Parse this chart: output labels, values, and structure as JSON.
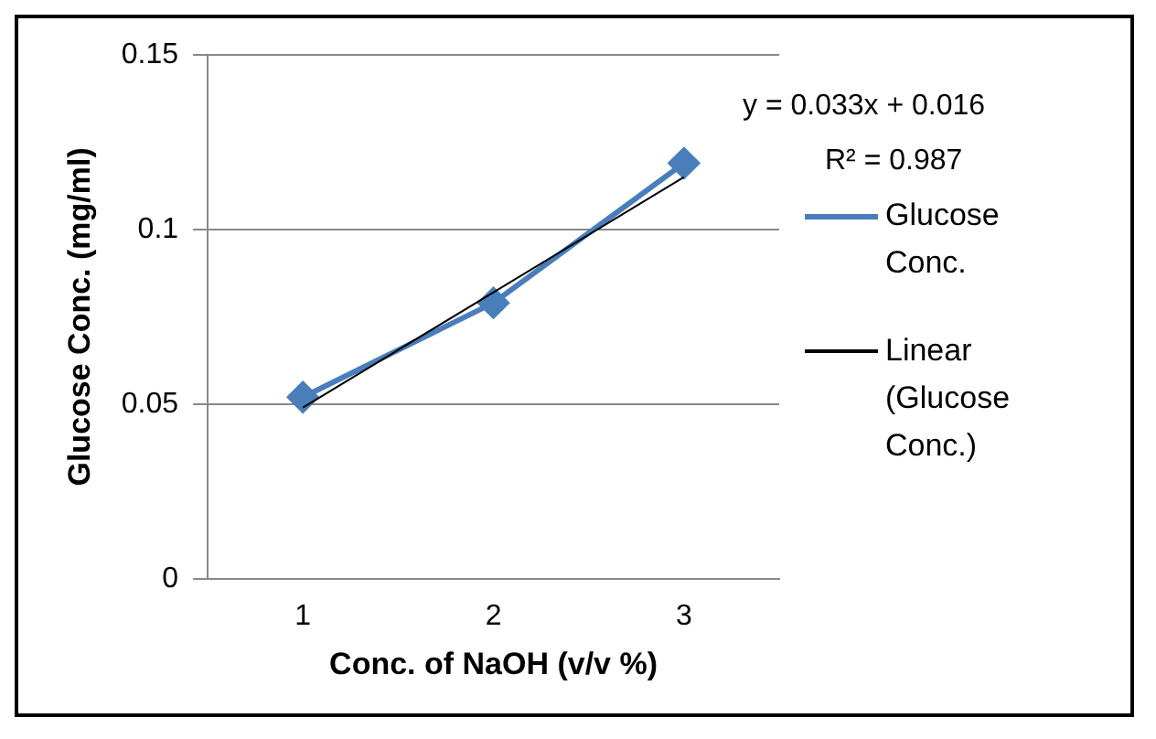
{
  "chart_data": {
    "type": "line",
    "xlabel": "Conc. of NaOH (v/v %)",
    "ylabel": "Glucose Conc. (mg/ml)",
    "x": [
      1,
      2,
      3
    ],
    "xlim": [
      0.5,
      3.5
    ],
    "xticks": [
      1,
      2,
      3
    ],
    "ylim": [
      0,
      0.15
    ],
    "yticks": [
      0,
      0.05,
      0.1,
      0.15
    ],
    "grid": "y",
    "legend": "right",
    "series": [
      {
        "name": "Glucose Conc.",
        "color": "#4a7ebb",
        "values": [
          0.052,
          0.079,
          0.119
        ],
        "marker": "diamond"
      },
      {
        "name": "Linear (Glucose Conc.)",
        "color": "#000000",
        "x": [
          1,
          2,
          3
        ],
        "values": [
          0.049,
          0.082,
          0.115
        ],
        "marker": "none"
      }
    ],
    "annotations": [
      "y = 0.033x + 0.016",
      "R² = 0.987"
    ]
  }
}
